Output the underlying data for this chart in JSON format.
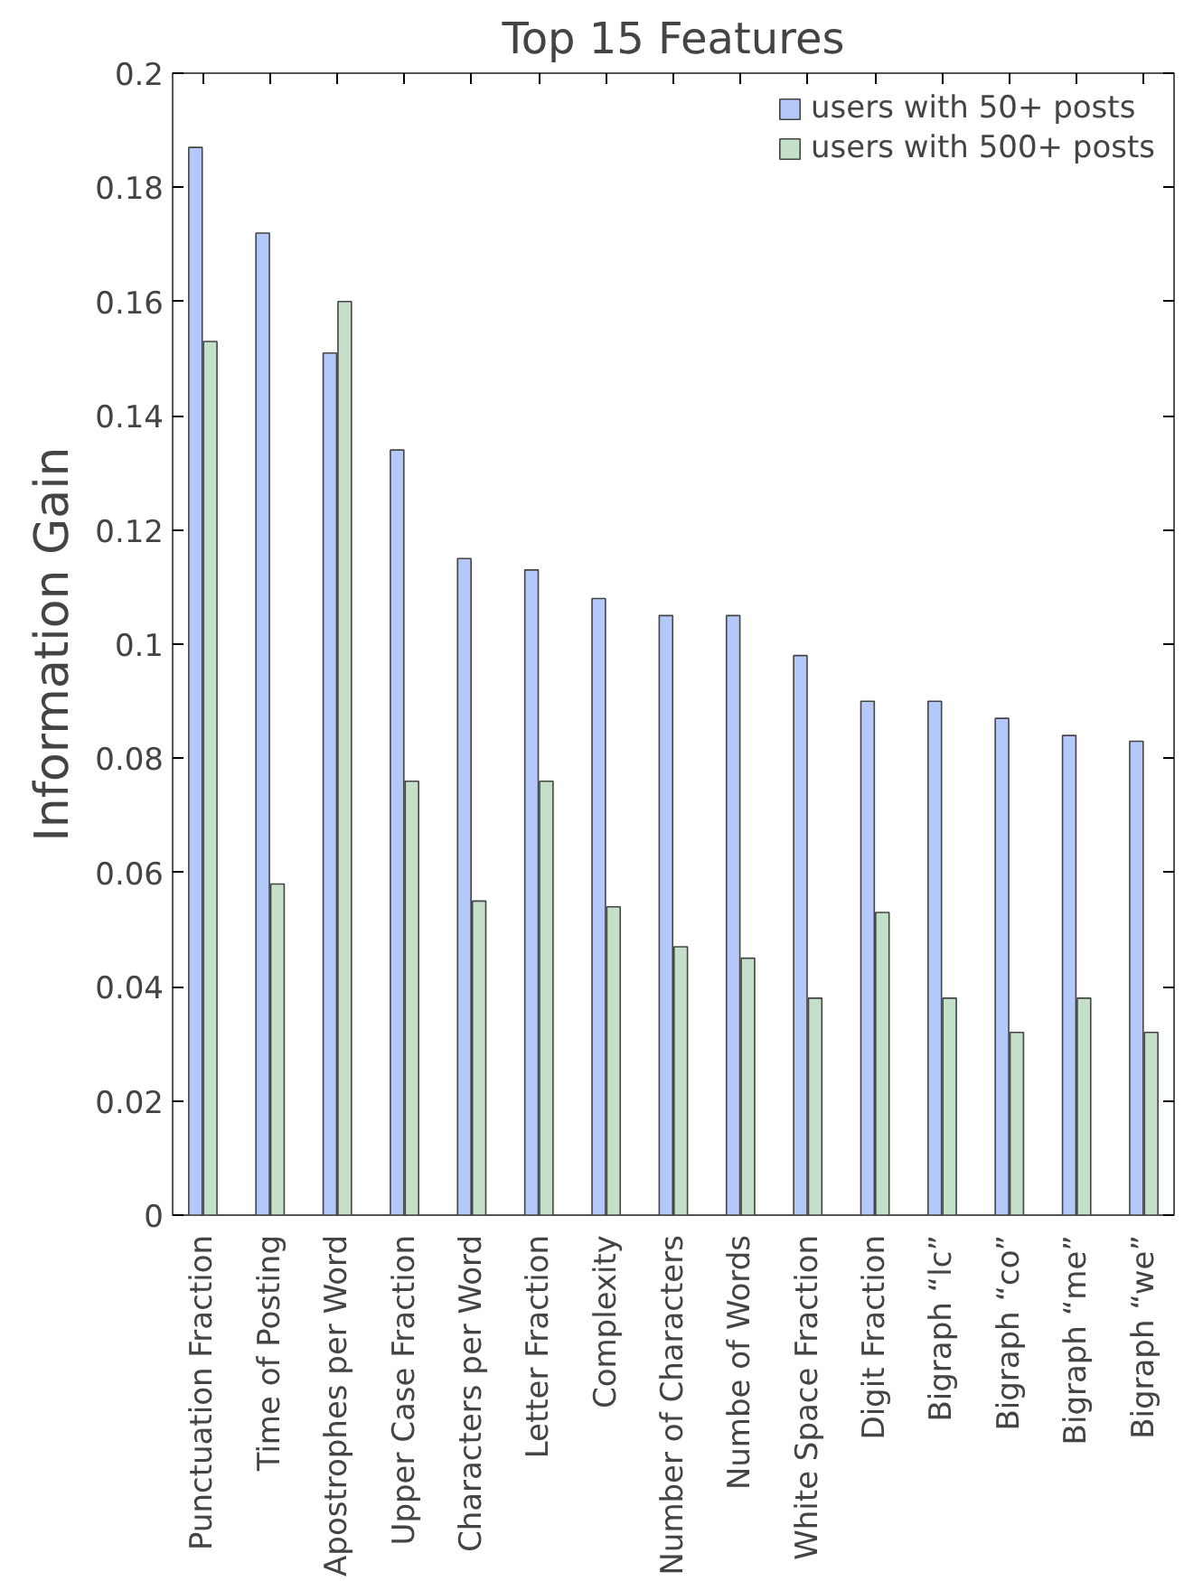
{
  "chart_data": {
    "type": "bar",
    "title": "Top 15 Features",
    "ylabel": "Information Gain",
    "categories": [
      "Punctuation Fraction",
      "Time of Posting",
      "Apostrophes per Word",
      "Upper Case Fraction",
      "Characters per Word",
      "Letter Fraction",
      "Complexity",
      "Number of Characters",
      "Numbe of Words",
      "White Space Fraction",
      "Digit Fraction",
      "Bigraph “lc”",
      "Bigraph “co”",
      "Bigraph “me”",
      "Bigraph “we”"
    ],
    "series": [
      {
        "name": "users with 50+ posts",
        "color": "#b4c8fa",
        "values": [
          0.187,
          0.172,
          0.151,
          0.134,
          0.115,
          0.113,
          0.108,
          0.105,
          0.105,
          0.098,
          0.09,
          0.09,
          0.087,
          0.084,
          0.083
        ]
      },
      {
        "name": "users with 500+ posts",
        "color": "#c4e0c8",
        "values": [
          0.153,
          0.058,
          0.16,
          0.076,
          0.055,
          0.076,
          0.054,
          0.047,
          0.045,
          0.038,
          0.053,
          0.038,
          0.032,
          0.038,
          0.032
        ]
      }
    ],
    "ylim": [
      0,
      0.2
    ],
    "yticks": [
      0,
      0.02,
      0.04,
      0.06,
      0.08,
      0.1,
      0.12,
      0.14,
      0.16,
      0.18,
      0.2
    ],
    "grid": false,
    "legend": "top right"
  }
}
